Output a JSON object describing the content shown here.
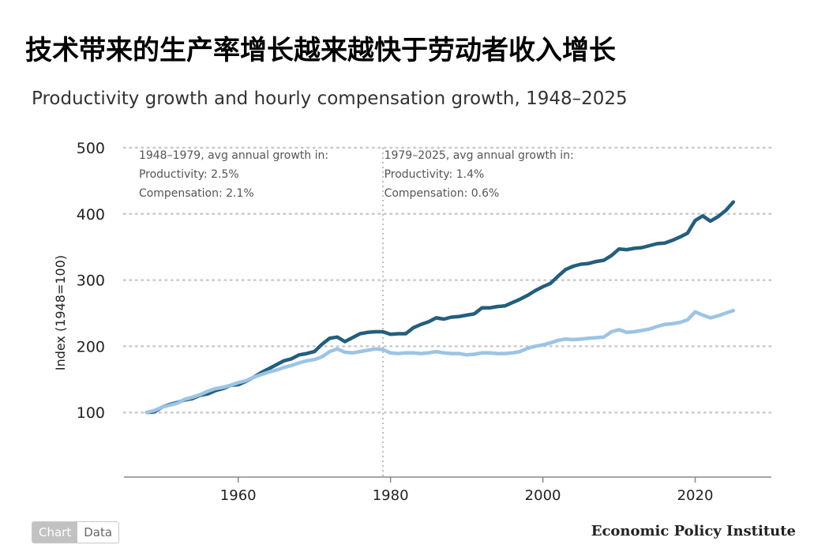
{
  "page": {
    "heading": "技术带来的生产率增长越来越快于劳动者收入增长",
    "subtitle": "Productivity growth and hourly compensation growth, 1948–2025",
    "source": "Economic Policy Institute",
    "tabs": [
      "Chart",
      "Data"
    ],
    "active_tab": "Chart"
  },
  "chart_data": {
    "type": "line",
    "title": "Productivity growth and hourly compensation growth, 1948–2025",
    "xlabel": "",
    "ylabel": "Index (1948=100)",
    "xlim": [
      1945,
      2030
    ],
    "ylim": [
      0,
      500
    ],
    "x_ticks": [
      1960,
      1980,
      2000,
      2020
    ],
    "y_ticks": [
      100,
      200,
      300,
      400,
      500
    ],
    "grid": "horizontal dotted",
    "divider_x": 1979,
    "annotations": [
      {
        "lines": [
          "1948–1979, avg annual growth in:",
          "Productivity: 2.5%",
          "Compensation: 2.1%"
        ],
        "anchor_x": 1948
      },
      {
        "lines": [
          "1979–2025, avg annual growth in:",
          "Productivity: 1.4%",
          "Compensation: 0.6%"
        ],
        "anchor_x": 1980.2
      }
    ],
    "series": [
      {
        "color": "#235e7d",
        "points": [
          [
            1948,
            100
          ],
          [
            1949,
            101
          ],
          [
            1950,
            108
          ],
          [
            1951,
            112
          ],
          [
            1952,
            115
          ],
          [
            1953,
            119
          ],
          [
            1954,
            121
          ],
          [
            1955,
            126
          ],
          [
            1956,
            128
          ],
          [
            1957,
            133
          ],
          [
            1958,
            136
          ],
          [
            1959,
            141
          ],
          [
            1960,
            142
          ],
          [
            1961,
            147
          ],
          [
            1962,
            153
          ],
          [
            1963,
            160
          ],
          [
            1964,
            166
          ],
          [
            1965,
            172
          ],
          [
            1966,
            178
          ],
          [
            1967,
            181
          ],
          [
            1968,
            187
          ],
          [
            1969,
            189
          ],
          [
            1970,
            192
          ],
          [
            1971,
            203
          ],
          [
            1972,
            212
          ],
          [
            1973,
            214
          ],
          [
            1974,
            207
          ],
          [
            1975,
            213
          ],
          [
            1976,
            219
          ],
          [
            1977,
            221
          ],
          [
            1978,
            222
          ],
          [
            1979,
            222
          ],
          [
            1980,
            218
          ],
          [
            1981,
            219
          ],
          [
            1982,
            219
          ],
          [
            1983,
            228
          ],
          [
            1984,
            233
          ],
          [
            1985,
            237
          ],
          [
            1986,
            243
          ],
          [
            1987,
            241
          ],
          [
            1988,
            244
          ],
          [
            1989,
            245
          ],
          [
            1990,
            247
          ],
          [
            1991,
            249
          ],
          [
            1992,
            258
          ],
          [
            1993,
            258
          ],
          [
            1994,
            260
          ],
          [
            1995,
            261
          ],
          [
            1996,
            266
          ],
          [
            1997,
            271
          ],
          [
            1998,
            277
          ],
          [
            1999,
            284
          ],
          [
            2000,
            290
          ],
          [
            2001,
            295
          ],
          [
            2002,
            306
          ],
          [
            2003,
            316
          ],
          [
            2004,
            321
          ],
          [
            2005,
            324
          ],
          [
            2006,
            325
          ],
          [
            2007,
            328
          ],
          [
            2008,
            330
          ],
          [
            2009,
            337
          ],
          [
            2010,
            347
          ],
          [
            2011,
            346
          ],
          [
            2012,
            348
          ],
          [
            2013,
            349
          ],
          [
            2014,
            352
          ],
          [
            2015,
            355
          ],
          [
            2016,
            356
          ],
          [
            2017,
            360
          ],
          [
            2018,
            365
          ],
          [
            2019,
            371
          ],
          [
            2020,
            390
          ],
          [
            2021,
            397
          ],
          [
            2022,
            389
          ],
          [
            2023,
            396
          ],
          [
            2024,
            405
          ],
          [
            2025,
            418
          ]
        ]
      },
      {
        "color": "#9cc4e4",
        "points": [
          [
            1948,
            100
          ],
          [
            1949,
            103
          ],
          [
            1950,
            108
          ],
          [
            1951,
            111
          ],
          [
            1952,
            114
          ],
          [
            1953,
            120
          ],
          [
            1954,
            123
          ],
          [
            1955,
            127
          ],
          [
            1956,
            132
          ],
          [
            1957,
            136
          ],
          [
            1958,
            138
          ],
          [
            1959,
            141
          ],
          [
            1960,
            145
          ],
          [
            1961,
            148
          ],
          [
            1962,
            153
          ],
          [
            1963,
            157
          ],
          [
            1964,
            161
          ],
          [
            1965,
            164
          ],
          [
            1966,
            168
          ],
          [
            1967,
            171
          ],
          [
            1968,
            175
          ],
          [
            1969,
            178
          ],
          [
            1970,
            180
          ],
          [
            1971,
            184
          ],
          [
            1972,
            192
          ],
          [
            1973,
            196
          ],
          [
            1974,
            191
          ],
          [
            1975,
            190
          ],
          [
            1976,
            192
          ],
          [
            1977,
            194
          ],
          [
            1978,
            196
          ],
          [
            1979,
            195
          ],
          [
            1980,
            190
          ],
          [
            1981,
            189
          ],
          [
            1982,
            190
          ],
          [
            1983,
            190
          ],
          [
            1984,
            189
          ],
          [
            1985,
            190
          ],
          [
            1986,
            192
          ],
          [
            1987,
            190
          ],
          [
            1988,
            189
          ],
          [
            1989,
            189
          ],
          [
            1990,
            187
          ],
          [
            1991,
            188
          ],
          [
            1992,
            190
          ],
          [
            1993,
            190
          ],
          [
            1994,
            189
          ],
          [
            1995,
            189
          ],
          [
            1996,
            190
          ],
          [
            1997,
            192
          ],
          [
            1998,
            197
          ],
          [
            1999,
            200
          ],
          [
            2000,
            202
          ],
          [
            2001,
            205
          ],
          [
            2002,
            209
          ],
          [
            2003,
            211
          ],
          [
            2004,
            210
          ],
          [
            2005,
            211
          ],
          [
            2006,
            212
          ],
          [
            2007,
            213
          ],
          [
            2008,
            214
          ],
          [
            2009,
            222
          ],
          [
            2010,
            225
          ],
          [
            2011,
            221
          ],
          [
            2012,
            222
          ],
          [
            2013,
            224
          ],
          [
            2014,
            226
          ],
          [
            2015,
            230
          ],
          [
            2016,
            233
          ],
          [
            2017,
            234
          ],
          [
            2018,
            236
          ],
          [
            2019,
            240
          ],
          [
            2020,
            252
          ],
          [
            2021,
            247
          ],
          [
            2022,
            243
          ],
          [
            2023,
            246
          ],
          [
            2024,
            250
          ],
          [
            2025,
            254
          ]
        ]
      }
    ]
  }
}
